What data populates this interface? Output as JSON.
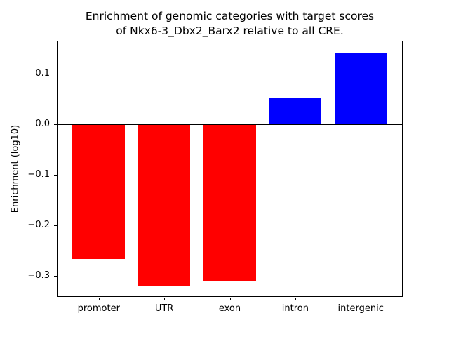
{
  "chart_data": {
    "type": "bar",
    "title": "Enrichment of genomic categories with target scores\nof Nkx6-3_Dbx2_Barx2 relative to all CRE.",
    "xlabel": "",
    "ylabel": "Enrichment (log10)",
    "categories": [
      "promoter",
      "UTR",
      "exon",
      "intron",
      "intergenic"
    ],
    "values": [
      -0.266,
      -0.32,
      -0.309,
      0.052,
      0.142
    ],
    "bar_colors": [
      "#ff0000",
      "#ff0000",
      "#ff0000",
      "#0000ff",
      "#0000ff"
    ],
    "negative_color": "#ff0000",
    "positive_color": "#0000ff",
    "yticks": [
      {
        "label": "0.1",
        "value": 0.1
      },
      {
        "label": "0.0",
        "value": 0.0
      },
      {
        "label": "−0.1",
        "value": -0.1
      },
      {
        "label": "−0.2",
        "value": -0.2
      },
      {
        "label": "−0.3",
        "value": -0.3
      }
    ],
    "ylim": [
      -0.341,
      0.165
    ],
    "xlim": [
      -0.64,
      4.64
    ],
    "bar_width": 0.8,
    "zero_line": true,
    "grid": false,
    "legend": "none",
    "frame_color": "#000000"
  }
}
